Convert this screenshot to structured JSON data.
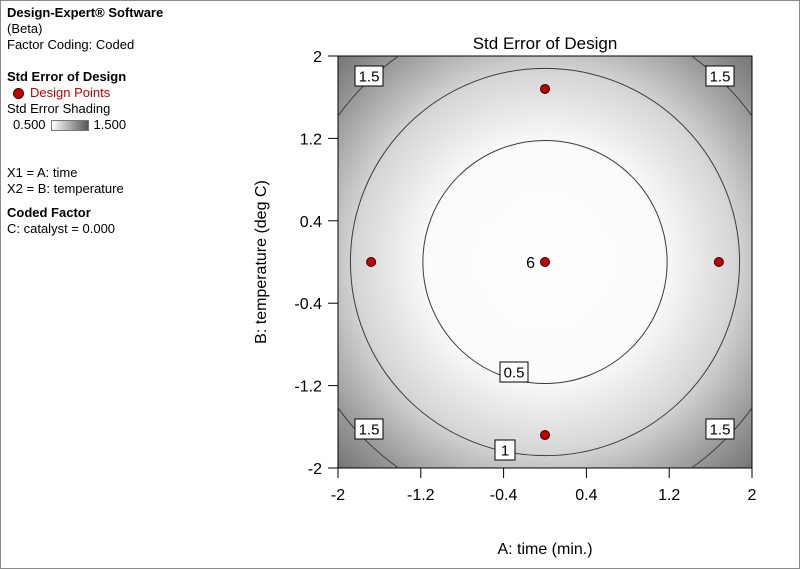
{
  "sidebar": {
    "app_name": "Design-Expert® Software",
    "version": "(Beta)",
    "factor_coding": "Factor Coding: Coded",
    "response_title": "Std Error of Design",
    "design_points_label": "Design Points",
    "shading_title": "Std Error Shading",
    "shading_min": "0.500",
    "shading_max": "1.500",
    "x1_def": "X1 = A: time",
    "x2_def": "X2 = B: temperature",
    "coded_factor_title": "Coded Factor",
    "coded_factor_value": "C: catalyst = 0.000"
  },
  "chart_data": {
    "type": "contour",
    "title": "Std Error of Design",
    "xlabel": "A: time (min.)",
    "ylabel": "B: temperature (deg C)",
    "xlim": [
      -2,
      2
    ],
    "ylim": [
      -2,
      2
    ],
    "xticks": [
      "-2",
      "-1.2",
      "-0.4",
      "0.4",
      "1.2",
      "2"
    ],
    "yticks": [
      "2",
      "1.2",
      "0.4",
      "-0.4",
      "-1.2",
      "-2"
    ],
    "shading_range": [
      0.5,
      1.5
    ],
    "contours": [
      {
        "level": "0.5",
        "radius": 1.18
      },
      {
        "level": "1",
        "radius": 1.88
      },
      {
        "level": "1.5",
        "radius": 2.45
      }
    ],
    "design_points": [
      {
        "x": 0,
        "y": 1.68
      },
      {
        "x": -1.68,
        "y": 0
      },
      {
        "x": 0,
        "y": 0,
        "label": "6"
      },
      {
        "x": 1.68,
        "y": 0
      },
      {
        "x": 0,
        "y": -1.68
      }
    ],
    "colors": {
      "design_point": "#c00000",
      "contour_line": "#3c3c3c"
    }
  }
}
